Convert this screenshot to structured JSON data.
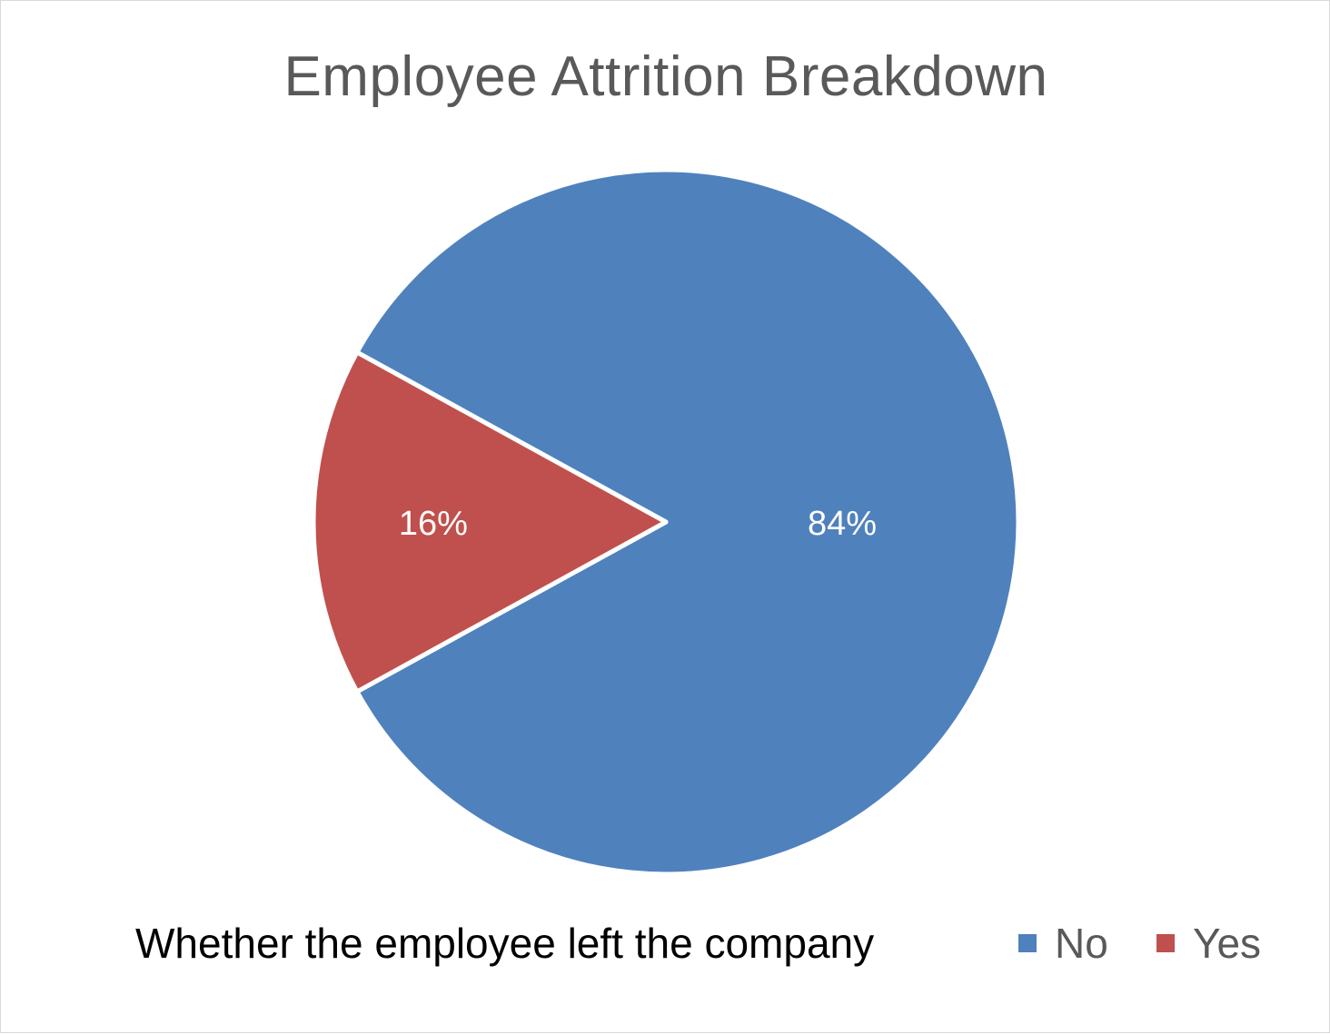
{
  "chart_data": {
    "type": "pie",
    "title": "Employee Attrition Breakdown",
    "legend_title": "Whether the employee left the company",
    "legend_position": "bottom",
    "categories": [
      "No",
      "Yes"
    ],
    "values": [
      84,
      16
    ],
    "data_labels": [
      "84%",
      "16%"
    ],
    "colors": [
      "#4f81bd",
      "#c0504d"
    ]
  }
}
